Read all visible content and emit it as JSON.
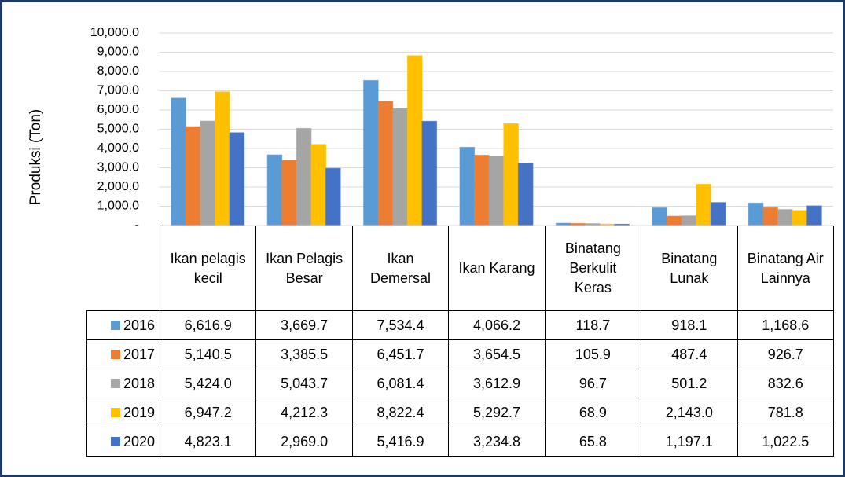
{
  "chart_data": {
    "type": "bar",
    "y_label": "Produksi (Ton)",
    "categories": [
      "Ikan pelagis kecil",
      "Ikan Pelagis Besar",
      "Ikan Demersal",
      "Ikan Karang",
      "Binatang Berkulit Keras",
      "Binatang Lunak",
      "Binatang Air Lainnya"
    ],
    "series": [
      {
        "name": "2016",
        "color": "#5b9bd5",
        "values": [
          6616.9,
          3669.7,
          7534.4,
          4066.2,
          118.7,
          918.1,
          1168.6
        ],
        "value_labels": [
          "6,616.9",
          "3,669.7",
          "7,534.4",
          "4,066.2",
          "118.7",
          "918.1",
          "1,168.6"
        ]
      },
      {
        "name": "2017",
        "color": "#ed7d31",
        "values": [
          5140.5,
          3385.5,
          6451.7,
          3654.5,
          105.9,
          487.4,
          926.7
        ],
        "value_labels": [
          "5,140.5",
          "3,385.5",
          "6,451.7",
          "3,654.5",
          "105.9",
          "487.4",
          "926.7"
        ]
      },
      {
        "name": "2018",
        "color": "#a5a5a5",
        "values": [
          5424.0,
          5043.7,
          6081.4,
          3612.9,
          96.7,
          501.2,
          832.6
        ],
        "value_labels": [
          "5,424.0",
          "5,043.7",
          "6,081.4",
          "3,612.9",
          "96.7",
          "501.2",
          "832.6"
        ]
      },
      {
        "name": "2019",
        "color": "#ffc000",
        "values": [
          6947.2,
          4212.3,
          8822.4,
          5292.7,
          68.9,
          2143.0,
          781.8
        ],
        "value_labels": [
          "6,947.2",
          "4,212.3",
          "8,822.4",
          "5,292.7",
          "68.9",
          "2,143.0",
          "781.8"
        ]
      },
      {
        "name": "2020",
        "color": "#4472c4",
        "values": [
          4823.1,
          2969.0,
          5416.9,
          3234.8,
          65.8,
          1197.1,
          1022.5
        ],
        "value_labels": [
          "4,823.1",
          "2,969.0",
          "5,416.9",
          "3,234.8",
          "65.8",
          "1,197.1",
          "1,022.5"
        ]
      }
    ],
    "ylim": [
      0,
      10000
    ],
    "yticks": [
      {
        "value": 0,
        "label": "-"
      },
      {
        "value": 1000,
        "label": "1,000.0"
      },
      {
        "value": 2000,
        "label": "2,000.0"
      },
      {
        "value": 3000,
        "label": "3,000.0"
      },
      {
        "value": 4000,
        "label": "4,000.0"
      },
      {
        "value": 5000,
        "label": "5,000.0"
      },
      {
        "value": 6000,
        "label": "6,000.0"
      },
      {
        "value": 7000,
        "label": "7,000.0"
      },
      {
        "value": 8000,
        "label": "8,000.0"
      },
      {
        "value": 9000,
        "label": "9,000.0"
      },
      {
        "value": 10000,
        "label": "10,000.0"
      }
    ],
    "grid": true
  }
}
